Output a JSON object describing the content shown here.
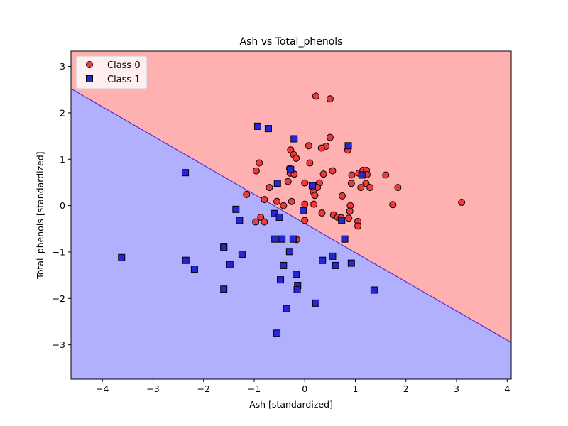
{
  "chart_data": {
    "type": "scatter",
    "title": "Ash vs Total_phenols",
    "xlabel": "Ash [standardized]",
    "ylabel": "Total_phenols [standardized]",
    "xlim": [
      -4.62,
      4.08
    ],
    "ylim": [
      -3.74,
      3.33
    ],
    "xticks": [
      -4,
      -3,
      -2,
      -1,
      0,
      1,
      2,
      3,
      4
    ],
    "yticks": [
      -3,
      -2,
      -1,
      0,
      1,
      2,
      3
    ],
    "xtick_labels": [
      "−4",
      "−3",
      "−2",
      "−1",
      "0",
      "1",
      "2",
      "3",
      "4"
    ],
    "ytick_labels": [
      "−3",
      "−2",
      "−1",
      "0",
      "1",
      "2",
      "3"
    ],
    "legend_position": "upper-left",
    "decision_boundary": [
      [
        -4.62,
        2.52
      ],
      [
        4.08,
        -2.95
      ]
    ],
    "region_colors": {
      "above": "#ffb0b0",
      "below": "#b0b0ff"
    },
    "series": [
      {
        "name": "Class 0",
        "marker": "circle",
        "color": "#f03a3a",
        "points": [
          [
            0.22,
            2.36
          ],
          [
            0.5,
            2.3
          ],
          [
            0.5,
            1.47
          ],
          [
            0.08,
            1.29
          ],
          [
            0.42,
            1.28
          ],
          [
            0.33,
            1.24
          ],
          [
            0.85,
            1.2
          ],
          [
            -0.28,
            1.2
          ],
          [
            -0.22,
            1.1
          ],
          [
            -0.17,
            1.02
          ],
          [
            -0.9,
            0.92
          ],
          [
            0.1,
            0.92
          ],
          [
            -0.96,
            0.75
          ],
          [
            -0.3,
            0.8
          ],
          [
            -0.29,
            0.7
          ],
          [
            -0.21,
            0.68
          ],
          [
            0.55,
            0.75
          ],
          [
            0.37,
            0.68
          ],
          [
            0.93,
            0.66
          ],
          [
            1.07,
            0.7
          ],
          [
            1.15,
            0.76
          ],
          [
            1.22,
            0.76
          ],
          [
            1.23,
            0.67
          ],
          [
            1.6,
            0.66
          ],
          [
            -0.33,
            0.52
          ],
          [
            0.0,
            0.49
          ],
          [
            0.29,
            0.49
          ],
          [
            0.92,
            0.48
          ],
          [
            1.21,
            0.48
          ],
          [
            -0.7,
            0.39
          ],
          [
            0.25,
            0.39
          ],
          [
            0.17,
            0.3
          ],
          [
            0.2,
            0.22
          ],
          [
            0.74,
            0.21
          ],
          [
            1.11,
            0.39
          ],
          [
            1.29,
            0.39
          ],
          [
            1.84,
            0.39
          ],
          [
            -1.15,
            0.24
          ],
          [
            -0.8,
            0.13
          ],
          [
            -0.55,
            0.09
          ],
          [
            -0.26,
            0.09
          ],
          [
            0.0,
            0.03
          ],
          [
            0.18,
            0.03
          ],
          [
            -0.42,
            0.0
          ],
          [
            0.9,
            0.0
          ],
          [
            1.74,
            0.02
          ],
          [
            3.1,
            0.07
          ],
          [
            0.34,
            -0.16
          ],
          [
            0.89,
            -0.12
          ],
          [
            0.57,
            -0.2
          ],
          [
            0.65,
            -0.25
          ],
          [
            0.72,
            -0.26
          ],
          [
            0.87,
            -0.27
          ],
          [
            -0.87,
            -0.25
          ],
          [
            -0.97,
            -0.35
          ],
          [
            -0.8,
            -0.35
          ],
          [
            0.0,
            -0.32
          ],
          [
            1.05,
            -0.34
          ],
          [
            1.05,
            -0.44
          ],
          [
            -0.16,
            -0.73
          ]
        ]
      },
      {
        "name": "Class 1",
        "marker": "square",
        "color": "#2626d9",
        "points": [
          [
            -0.93,
            1.71
          ],
          [
            -0.72,
            1.66
          ],
          [
            -0.21,
            1.44
          ],
          [
            0.86,
            1.29
          ],
          [
            -0.28,
            0.78
          ],
          [
            1.13,
            0.66
          ],
          [
            -2.36,
            0.71
          ],
          [
            0.15,
            0.43
          ],
          [
            -0.54,
            0.48
          ],
          [
            -0.6,
            -0.17
          ],
          [
            -0.5,
            -0.25
          ],
          [
            -1.36,
            -0.08
          ],
          [
            -0.03,
            -0.11
          ],
          [
            -1.29,
            -0.32
          ],
          [
            0.73,
            -0.32
          ],
          [
            -0.59,
            -0.72
          ],
          [
            -0.45,
            -0.72
          ],
          [
            -0.23,
            -0.72
          ],
          [
            0.79,
            -0.72
          ],
          [
            -1.6,
            -0.88
          ],
          [
            -1.6,
            -0.9
          ],
          [
            -0.3,
            -0.99
          ],
          [
            -1.24,
            -1.05
          ],
          [
            0.55,
            -1.09
          ],
          [
            -3.62,
            -1.12
          ],
          [
            -2.35,
            -1.18
          ],
          [
            0.35,
            -1.18
          ],
          [
            -1.48,
            -1.27
          ],
          [
            -0.42,
            -1.29
          ],
          [
            0.61,
            -1.29
          ],
          [
            0.92,
            -1.24
          ],
          [
            -2.18,
            -1.37
          ],
          [
            -0.17,
            -1.48
          ],
          [
            -0.48,
            -1.6
          ],
          [
            -0.14,
            -1.72
          ],
          [
            -0.15,
            -1.81
          ],
          [
            -1.6,
            -1.8
          ],
          [
            1.37,
            -1.82
          ],
          [
            0.22,
            -2.1
          ],
          [
            -0.36,
            -2.22
          ],
          [
            -0.55,
            -2.75
          ]
        ]
      }
    ]
  }
}
